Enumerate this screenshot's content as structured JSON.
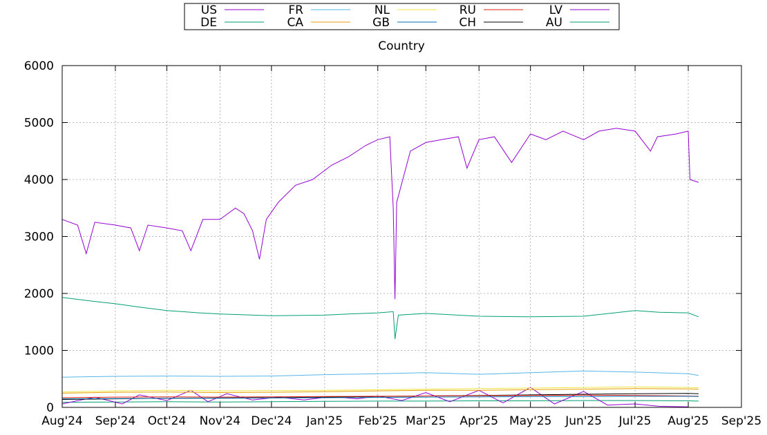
{
  "chart_data": {
    "type": "line",
    "title": "Country",
    "xlabel": "",
    "ylabel": "",
    "ylim": [
      0,
      6000
    ],
    "y_ticks": [
      0,
      1000,
      2000,
      3000,
      4000,
      5000,
      6000
    ],
    "xlim": [
      "2024-08-01",
      "2025-09-01"
    ],
    "x_ticks": [
      "Aug'24",
      "Sep'24",
      "Oct'24",
      "Nov'24",
      "Dec'24",
      "Jan'25",
      "Feb'25",
      "Mar'25",
      "Apr'25",
      "May'25",
      "Jun'25",
      "Jul'25",
      "Aug'25",
      "Sep'25"
    ],
    "grid": true,
    "legend_placement": "top-center",
    "series": [
      {
        "name": "US",
        "color": "#9400d3",
        "points": [
          [
            "2024-08-01",
            3300
          ],
          [
            "2024-08-10",
            3200
          ],
          [
            "2024-08-15",
            2700
          ],
          [
            "2024-08-20",
            3250
          ],
          [
            "2024-09-01",
            3200
          ],
          [
            "2024-09-10",
            3150
          ],
          [
            "2024-09-15",
            2750
          ],
          [
            "2024-09-20",
            3200
          ],
          [
            "2024-10-01",
            3150
          ],
          [
            "2024-10-10",
            3100
          ],
          [
            "2024-10-15",
            2750
          ],
          [
            "2024-10-22",
            3300
          ],
          [
            "2024-11-01",
            3300
          ],
          [
            "2024-11-10",
            3500
          ],
          [
            "2024-11-15",
            3400
          ],
          [
            "2024-11-20",
            3100
          ],
          [
            "2024-11-24",
            2600
          ],
          [
            "2024-11-28",
            3300
          ],
          [
            "2024-12-05",
            3600
          ],
          [
            "2024-12-15",
            3900
          ],
          [
            "2024-12-25",
            4000
          ],
          [
            "2025-01-05",
            4250
          ],
          [
            "2025-01-15",
            4400
          ],
          [
            "2025-01-25",
            4600
          ],
          [
            "2025-02-01",
            4700
          ],
          [
            "2025-02-08",
            4750
          ],
          [
            "2025-02-10",
            3500
          ],
          [
            "2025-02-11",
            1900
          ],
          [
            "2025-02-12",
            3600
          ],
          [
            "2025-02-20",
            4500
          ],
          [
            "2025-03-01",
            4650
          ],
          [
            "2025-03-10",
            4700
          ],
          [
            "2025-03-20",
            4750
          ],
          [
            "2025-03-25",
            4200
          ],
          [
            "2025-04-01",
            4700
          ],
          [
            "2025-04-10",
            4750
          ],
          [
            "2025-04-20",
            4300
          ],
          [
            "2025-05-01",
            4800
          ],
          [
            "2025-05-10",
            4700
          ],
          [
            "2025-05-20",
            4850
          ],
          [
            "2025-06-01",
            4700
          ],
          [
            "2025-06-10",
            4850
          ],
          [
            "2025-06-20",
            4900
          ],
          [
            "2025-07-01",
            4850
          ],
          [
            "2025-07-10",
            4500
          ],
          [
            "2025-07-14",
            4750
          ],
          [
            "2025-07-25",
            4800
          ],
          [
            "2025-08-01",
            4850
          ],
          [
            "2025-08-02",
            4000
          ],
          [
            "2025-08-07",
            3950
          ]
        ]
      },
      {
        "name": "DE",
        "color": "#009e73",
        "points": [
          [
            "2024-08-01",
            1930
          ],
          [
            "2024-08-20",
            1860
          ],
          [
            "2024-09-01",
            1820
          ],
          [
            "2024-09-15",
            1760
          ],
          [
            "2024-10-01",
            1700
          ],
          [
            "2024-10-20",
            1660
          ],
          [
            "2024-11-01",
            1640
          ],
          [
            "2024-12-01",
            1610
          ],
          [
            "2025-01-01",
            1620
          ],
          [
            "2025-01-15",
            1640
          ],
          [
            "2025-02-01",
            1660
          ],
          [
            "2025-02-10",
            1680
          ],
          [
            "2025-02-11",
            1200
          ],
          [
            "2025-02-13",
            1620
          ],
          [
            "2025-03-01",
            1650
          ],
          [
            "2025-04-01",
            1600
          ],
          [
            "2025-05-01",
            1590
          ],
          [
            "2025-06-01",
            1600
          ],
          [
            "2025-07-01",
            1700
          ],
          [
            "2025-07-15",
            1670
          ],
          [
            "2025-08-01",
            1660
          ],
          [
            "2025-08-07",
            1590
          ]
        ]
      },
      {
        "name": "FR",
        "color": "#56b4e9",
        "points": [
          [
            "2024-08-01",
            530
          ],
          [
            "2024-09-01",
            545
          ],
          [
            "2024-10-01",
            550
          ],
          [
            "2024-11-01",
            545
          ],
          [
            "2024-12-01",
            550
          ],
          [
            "2025-01-01",
            575
          ],
          [
            "2025-02-01",
            590
          ],
          [
            "2025-03-01",
            610
          ],
          [
            "2025-04-01",
            580
          ],
          [
            "2025-05-01",
            610
          ],
          [
            "2025-06-01",
            640
          ],
          [
            "2025-07-01",
            620
          ],
          [
            "2025-08-01",
            590
          ],
          [
            "2025-08-07",
            560
          ]
        ]
      },
      {
        "name": "CA",
        "color": "#e69f00",
        "points": [
          [
            "2024-08-01",
            250
          ],
          [
            "2024-09-01",
            265
          ],
          [
            "2024-10-01",
            270
          ],
          [
            "2024-11-01",
            260
          ],
          [
            "2024-12-01",
            265
          ],
          [
            "2025-01-01",
            275
          ],
          [
            "2025-02-01",
            290
          ],
          [
            "2025-03-01",
            300
          ],
          [
            "2025-04-01",
            300
          ],
          [
            "2025-05-01",
            310
          ],
          [
            "2025-06-01",
            320
          ],
          [
            "2025-07-01",
            330
          ],
          [
            "2025-08-01",
            325
          ],
          [
            "2025-08-07",
            320
          ]
        ]
      },
      {
        "name": "NL",
        "color": "#f0e442",
        "points": [
          [
            "2024-08-01",
            270
          ],
          [
            "2024-09-01",
            290
          ],
          [
            "2024-10-01",
            300
          ],
          [
            "2024-11-01",
            290
          ],
          [
            "2024-12-01",
            295
          ],
          [
            "2025-01-01",
            300
          ],
          [
            "2025-02-01",
            310
          ],
          [
            "2025-03-01",
            320
          ],
          [
            "2025-04-01",
            330
          ],
          [
            "2025-05-01",
            340
          ],
          [
            "2025-06-01",
            350
          ],
          [
            "2025-07-01",
            360
          ],
          [
            "2025-08-01",
            350
          ],
          [
            "2025-08-07",
            345
          ]
        ]
      },
      {
        "name": "GB",
        "color": "#0072b2",
        "points": [
          [
            "2024-08-01",
            150
          ],
          [
            "2024-09-01",
            155
          ],
          [
            "2024-10-01",
            160
          ],
          [
            "2024-11-01",
            160
          ],
          [
            "2024-12-01",
            165
          ],
          [
            "2025-01-01",
            170
          ],
          [
            "2025-02-01",
            175
          ],
          [
            "2025-03-01",
            180
          ],
          [
            "2025-04-01",
            185
          ],
          [
            "2025-05-01",
            190
          ],
          [
            "2025-06-01",
            190
          ],
          [
            "2025-07-01",
            195
          ],
          [
            "2025-08-01",
            195
          ],
          [
            "2025-08-07",
            190
          ]
        ]
      },
      {
        "name": "RU",
        "color": "#e51e10",
        "points": [
          [
            "2024-08-01",
            170
          ],
          [
            "2024-09-01",
            180
          ],
          [
            "2024-10-01",
            185
          ],
          [
            "2024-11-01",
            180
          ],
          [
            "2024-12-01",
            185
          ],
          [
            "2025-01-01",
            190
          ],
          [
            "2025-02-01",
            195
          ],
          [
            "2025-03-01",
            200
          ],
          [
            "2025-04-01",
            205
          ],
          [
            "2025-05-01",
            210
          ],
          [
            "2025-06-01",
            215
          ],
          [
            "2025-07-01",
            210
          ],
          [
            "2025-08-01",
            200
          ],
          [
            "2025-08-07",
            195
          ]
        ]
      },
      {
        "name": "CH",
        "color": "#000000",
        "points": [
          [
            "2024-08-01",
            140
          ],
          [
            "2024-09-01",
            150
          ],
          [
            "2024-10-01",
            160
          ],
          [
            "2024-11-01",
            165
          ],
          [
            "2024-12-01",
            170
          ],
          [
            "2025-01-01",
            180
          ],
          [
            "2025-02-01",
            190
          ],
          [
            "2025-03-01",
            200
          ],
          [
            "2025-04-01",
            210
          ],
          [
            "2025-05-01",
            220
          ],
          [
            "2025-06-01",
            230
          ],
          [
            "2025-07-01",
            240
          ],
          [
            "2025-08-01",
            245
          ],
          [
            "2025-08-07",
            240
          ]
        ]
      },
      {
        "name": "LV",
        "color": "#9400d3",
        "points": [
          [
            "2024-08-01",
            60
          ],
          [
            "2024-08-20",
            180
          ],
          [
            "2024-09-05",
            60
          ],
          [
            "2024-09-15",
            220
          ],
          [
            "2024-10-01",
            120
          ],
          [
            "2024-10-15",
            300
          ],
          [
            "2024-10-25",
            100
          ],
          [
            "2024-11-05",
            240
          ],
          [
            "2024-11-20",
            130
          ],
          [
            "2024-12-05",
            180
          ],
          [
            "2024-12-20",
            130
          ],
          [
            "2025-01-05",
            190
          ],
          [
            "2025-01-20",
            150
          ],
          [
            "2025-02-01",
            200
          ],
          [
            "2025-02-15",
            120
          ],
          [
            "2025-03-01",
            260
          ],
          [
            "2025-03-15",
            100
          ],
          [
            "2025-04-01",
            300
          ],
          [
            "2025-04-15",
            80
          ],
          [
            "2025-05-01",
            350
          ],
          [
            "2025-05-15",
            60
          ],
          [
            "2025-06-01",
            280
          ],
          [
            "2025-06-15",
            40
          ],
          [
            "2025-07-01",
            60
          ],
          [
            "2025-07-15",
            20
          ],
          [
            "2025-08-01",
            10
          ]
        ]
      },
      {
        "name": "AU",
        "color": "#009e73",
        "points": [
          [
            "2024-08-01",
            90
          ],
          [
            "2024-09-01",
            95
          ],
          [
            "2024-10-01",
            100
          ],
          [
            "2024-11-01",
            95
          ],
          [
            "2024-12-01",
            100
          ],
          [
            "2025-01-01",
            105
          ],
          [
            "2025-02-01",
            110
          ],
          [
            "2025-03-01",
            110
          ],
          [
            "2025-04-01",
            115
          ],
          [
            "2025-05-01",
            115
          ],
          [
            "2025-06-01",
            120
          ],
          [
            "2025-07-01",
            120
          ],
          [
            "2025-08-01",
            115
          ],
          [
            "2025-08-07",
            110
          ]
        ]
      }
    ]
  }
}
